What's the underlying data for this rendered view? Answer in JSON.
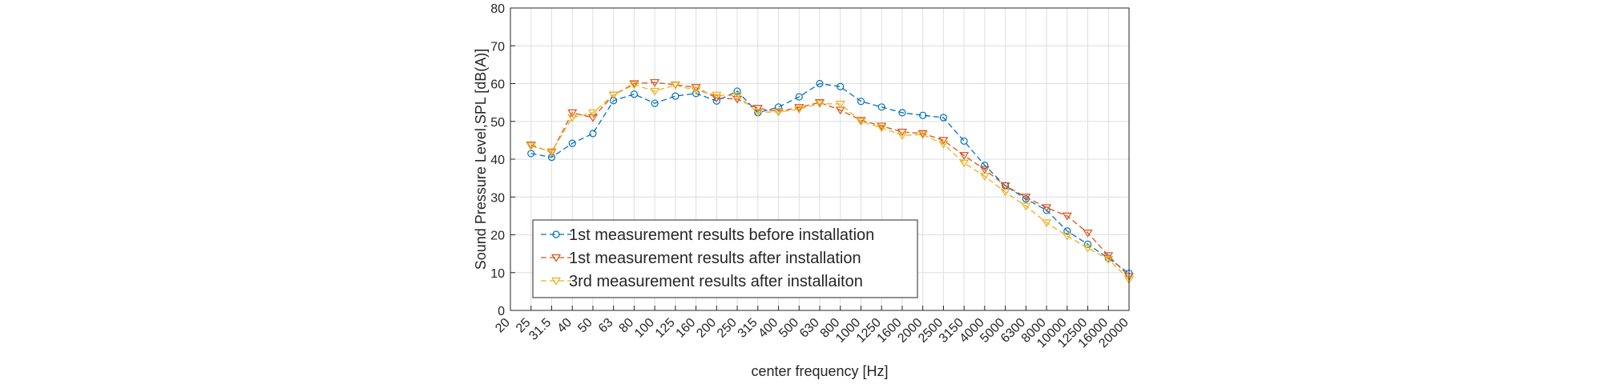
{
  "chart_data": {
    "type": "line",
    "title": "",
    "xlabel": "center frequency [Hz]",
    "ylabel": "Sound Pressure Level,SPL [dB(A)]",
    "ylim": [
      0,
      80
    ],
    "yticks": [
      0,
      10,
      20,
      30,
      40,
      50,
      60,
      70,
      80
    ],
    "grid": true,
    "legend_position": "bottom-left",
    "categories": [
      "20",
      "25",
      "31.5",
      "40",
      "50",
      "63",
      "80",
      "100",
      "125",
      "160",
      "200",
      "250",
      "315",
      "400",
      "500",
      "630",
      "800",
      "1000",
      "1250",
      "1600",
      "2000",
      "2500",
      "3150",
      "4000",
      "5000",
      "6300",
      "8000",
      "10000",
      "12500",
      "16000",
      "20000"
    ],
    "series": [
      {
        "name": "1st measurement results before installation",
        "color": "#0072BD",
        "marker": "circle",
        "values": [
          null,
          41.5,
          40.5,
          44.2,
          46.8,
          55.5,
          57.2,
          54.8,
          56.7,
          57.4,
          55.4,
          58.0,
          52.3,
          53.8,
          56.5,
          60.0,
          59.2,
          55.3,
          53.8,
          52.3,
          51.6,
          51.0,
          44.8,
          38.4,
          33.0,
          29.5,
          26.5,
          21.0,
          17.5,
          13.8,
          9.8
        ]
      },
      {
        "name": "1st measurement results after installation",
        "color": "#D95319",
        "marker": "triangle-down",
        "values": [
          null,
          43.8,
          41.8,
          52.3,
          51.0,
          57.0,
          60.0,
          60.3,
          59.7,
          59.0,
          56.2,
          55.9,
          53.5,
          52.6,
          53.7,
          55.0,
          53.0,
          50.3,
          48.8,
          47.2,
          46.8,
          45.0,
          41.0,
          37.3,
          33.0,
          30.0,
          27.2,
          25.0,
          20.5,
          14.5,
          9.0
        ]
      },
      {
        "name": "3rd measurement results after installaiton",
        "color": "#EDB120",
        "marker": "triangle-down",
        "values": [
          null,
          43.5,
          42.0,
          51.0,
          52.3,
          57.0,
          59.7,
          58.0,
          59.6,
          58.2,
          57.0,
          56.8,
          52.4,
          52.5,
          53.2,
          54.7,
          54.6,
          50.0,
          48.3,
          46.3,
          46.5,
          44.0,
          39.0,
          35.5,
          31.3,
          27.6,
          23.2,
          19.7,
          16.5,
          13.5,
          8.2
        ]
      }
    ]
  }
}
